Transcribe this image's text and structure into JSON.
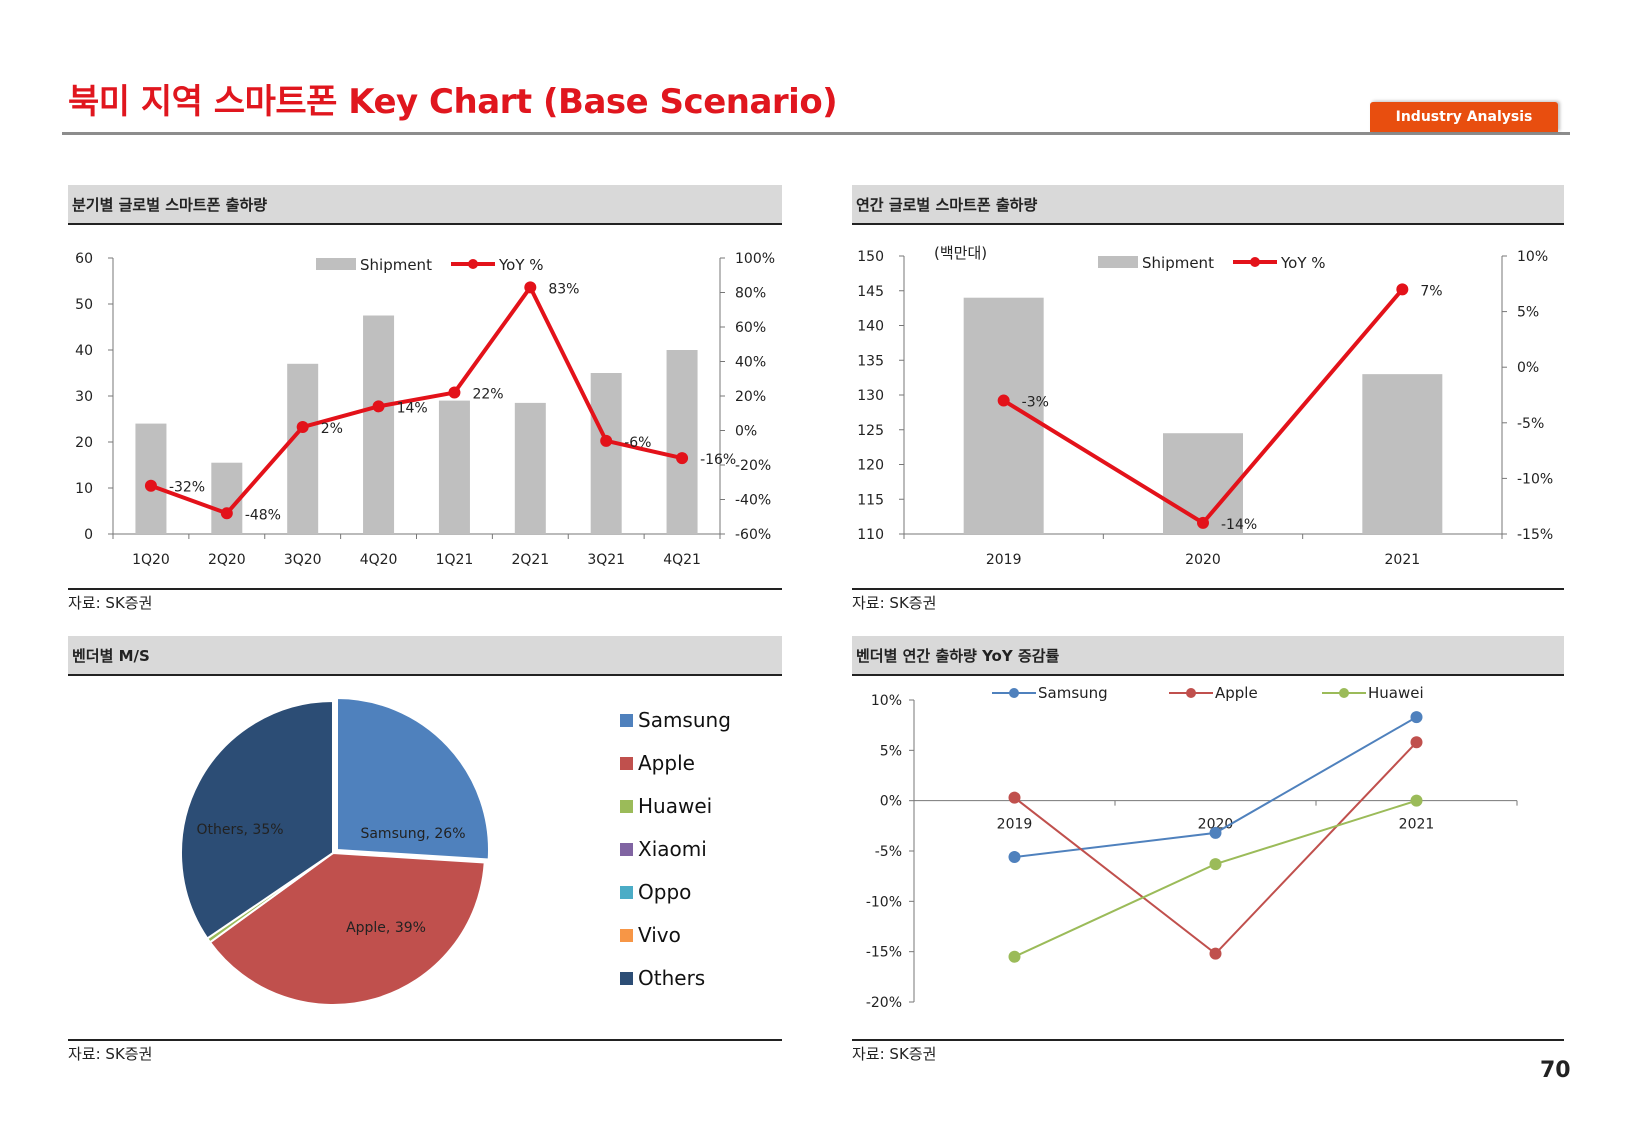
{
  "page": {
    "title": "북미 지역 스마트폰 Key Chart (Base Scenario)",
    "badge": "Industry Analysis",
    "page_number": "70",
    "source": "자료: SK증권"
  },
  "colors": {
    "title_red": "#e0161e",
    "badge_orange": "#e84e0f",
    "bar_gray": "#bfbfbf",
    "line_red": "#e3121a"
  },
  "chart_data": [
    {
      "id": "quarterly",
      "title": "분기별 글로벌 스마트폰 출하량",
      "type": "bar",
      "categories": [
        "1Q20",
        "2Q20",
        "3Q20",
        "4Q20",
        "1Q21",
        "2Q21",
        "3Q21",
        "4Q21"
      ],
      "series": [
        {
          "name": "Shipment",
          "axis": "left",
          "type": "bar",
          "values": [
            24,
            15.5,
            37,
            47.5,
            29,
            28.5,
            35,
            40
          ]
        },
        {
          "name": "YoY %",
          "axis": "right",
          "type": "line",
          "values": [
            -32,
            -48,
            2,
            14,
            22,
            83,
            -6,
            -16
          ]
        }
      ],
      "data_labels": [
        "-32%",
        "-48%",
        "2%",
        "14%",
        "22%",
        "83%",
        "-6%",
        "-16%"
      ],
      "left_axis": {
        "min": 0,
        "max": 60,
        "ticks": [
          0,
          10,
          20,
          30,
          40,
          50,
          60
        ]
      },
      "right_axis": {
        "min": -60,
        "max": 100,
        "ticks": [
          "-60%",
          "-40%",
          "-20%",
          "0%",
          "20%",
          "40%",
          "60%",
          "80%",
          "100%"
        ]
      },
      "legend": "top-center"
    },
    {
      "id": "annual",
      "title": "연간 글로벌 스마트폰 출하량",
      "type": "bar",
      "unit": "(백만대)",
      "categories": [
        "2019",
        "2020",
        "2021"
      ],
      "series": [
        {
          "name": "Shipment",
          "axis": "left",
          "type": "bar",
          "values": [
            144,
            124.5,
            133
          ]
        },
        {
          "name": "YoY %",
          "axis": "right",
          "type": "line",
          "values": [
            -3,
            -14,
            7
          ]
        }
      ],
      "data_labels": [
        "-3%",
        "-14%",
        "7%"
      ],
      "left_axis": {
        "min": 110,
        "max": 150,
        "ticks": [
          110,
          115,
          120,
          125,
          130,
          135,
          140,
          145,
          150
        ]
      },
      "right_axis": {
        "min": -15,
        "max": 10,
        "ticks": [
          "-15%",
          "-10%",
          "-5%",
          "0%",
          "5%",
          "10%"
        ]
      },
      "legend": "top-center"
    },
    {
      "id": "vendor_ms",
      "title": "벤더별 M/S",
      "type": "pie",
      "slices": [
        {
          "name": "Samsung",
          "value": 26,
          "color": "#4f81bd",
          "label": "Samsung, 26%"
        },
        {
          "name": "Apple",
          "value": 39,
          "color": "#c0504d",
          "label": "Apple, 39%"
        },
        {
          "name": "Huawei",
          "value": 0.5,
          "color": "#9bbb59",
          "label": ""
        },
        {
          "name": "Xiaomi",
          "value": 0,
          "color": "#8064a2",
          "label": ""
        },
        {
          "name": "Oppo",
          "value": 0,
          "color": "#4bacc6",
          "label": ""
        },
        {
          "name": "Vivo",
          "value": 0,
          "color": "#f79646",
          "label": ""
        },
        {
          "name": "Others",
          "value": 34.5,
          "color": "#2c4d75",
          "label": "Others, 35%"
        }
      ],
      "legend": "right"
    },
    {
      "id": "vendor_yoy",
      "title": "벤더별 연간 출하량 YoY 증감률",
      "type": "line",
      "x": [
        "2019",
        "2020",
        "2021"
      ],
      "series": [
        {
          "name": "Samsung",
          "color": "#4f81bd",
          "values": [
            -5.6,
            -3.2,
            8.3
          ]
        },
        {
          "name": "Apple",
          "color": "#c0504d",
          "values": [
            0.3,
            -15.2,
            5.8
          ]
        },
        {
          "name": "Huawei",
          "color": "#9bbb59",
          "values": [
            -15.5,
            -6.3,
            0
          ]
        }
      ],
      "y_axis": {
        "min": -20,
        "max": 10,
        "ticks": [
          "-20%",
          "-15%",
          "-10%",
          "-5%",
          "0%",
          "5%",
          "10%"
        ]
      },
      "legend": "top"
    }
  ]
}
